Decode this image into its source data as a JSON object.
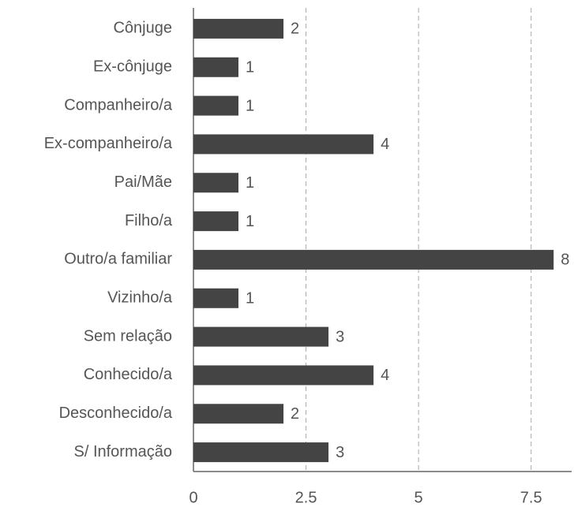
{
  "chart_data": {
    "type": "bar",
    "orientation": "horizontal",
    "categories": [
      "Cônjuge",
      "Ex-cônjuge",
      "Companheiro/a",
      "Ex-companheiro/a",
      "Pai/Mãe",
      "Filho/a",
      "Outro/a familiar",
      "Vizinho/a",
      "Sem relação",
      "Conhecido/a",
      "Desconhecido/a",
      "S/ Informação"
    ],
    "values": [
      2,
      1,
      1,
      4,
      1,
      1,
      8,
      1,
      3,
      4,
      2,
      3
    ],
    "color": "#444444",
    "xlim": [
      0,
      8.4
    ],
    "xticks": [
      0,
      2.5,
      5,
      7.5
    ],
    "grid": true
  }
}
